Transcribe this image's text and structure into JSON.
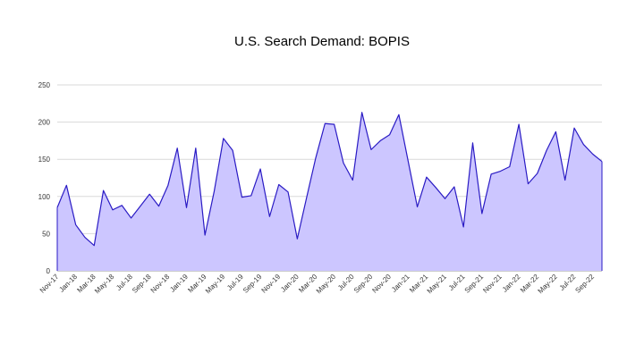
{
  "chart_data": {
    "type": "area",
    "title": "U.S. Search Demand: BOPIS",
    "xlabel": "",
    "ylabel": "",
    "ylim": [
      0,
      250
    ],
    "yticks": [
      0,
      50,
      100,
      150,
      200,
      250
    ],
    "grid": true,
    "legend": "none",
    "colors": {
      "fill": "#ccc6ff",
      "line": "#2a1bc4",
      "grid": "#d9d9d9"
    },
    "x": [
      "Nov-17",
      "Dec-17",
      "Jan-18",
      "Feb-18",
      "Mar-18",
      "Apr-18",
      "May-18",
      "Jun-18",
      "Jul-18",
      "Aug-18",
      "Sep-18",
      "Oct-18",
      "Nov-18",
      "Dec-18",
      "Jan-19",
      "Feb-19",
      "Mar-19",
      "Apr-19",
      "May-19",
      "Jun-19",
      "Jul-19",
      "Aug-19",
      "Sep-19",
      "Oct-19",
      "Nov-19",
      "Dec-19",
      "Jan-20",
      "Feb-20",
      "Mar-20",
      "Apr-20",
      "May-20",
      "Jun-20",
      "Jul-20",
      "Aug-20",
      "Sep-20",
      "Oct-20",
      "Nov-20",
      "Dec-20",
      "Jan-21",
      "Feb-21",
      "Mar-21",
      "Apr-21",
      "May-21",
      "Jun-21",
      "Jul-21",
      "Aug-21",
      "Sep-21",
      "Oct-21",
      "Nov-21",
      "Dec-21",
      "Jan-22",
      "Feb-22",
      "Mar-22",
      "Apr-22",
      "May-22",
      "Jun-22",
      "Jul-22",
      "Aug-22",
      "Sep-22",
      "Oct-22"
    ],
    "xtick_labels": [
      "Nov-17",
      "Jan-18",
      "Mar-18",
      "May-18",
      "Jul-18",
      "Sep-18",
      "Nov-18",
      "Jan-19",
      "Mar-19",
      "May-19",
      "Jul-19",
      "Sep-19",
      "Nov-19",
      "Jan-20",
      "Mar-20",
      "May-20",
      "Jul-20",
      "Sep-20",
      "Nov-20",
      "Jan-21",
      "Mar-21",
      "May-21",
      "Jul-21",
      "Sep-21",
      "Nov-21",
      "Jan-22",
      "Mar-22",
      "May-22",
      "Jul-22",
      "Sep-22"
    ],
    "series": [
      {
        "values": [
          85,
          115,
          62,
          45,
          34,
          108,
          82,
          88,
          71,
          87,
          103,
          87,
          115,
          165,
          85,
          165,
          48,
          107,
          178,
          162,
          99,
          101,
          137,
          73,
          116,
          106,
          43,
          98,
          152,
          198,
          197,
          145,
          122,
          213,
          163,
          175,
          183,
          210,
          148,
          86,
          126,
          112,
          97,
          113,
          59,
          172,
          77,
          130,
          134,
          140,
          197,
          117,
          131,
          162,
          187,
          122,
          192,
          170,
          157,
          147
        ]
      }
    ]
  }
}
